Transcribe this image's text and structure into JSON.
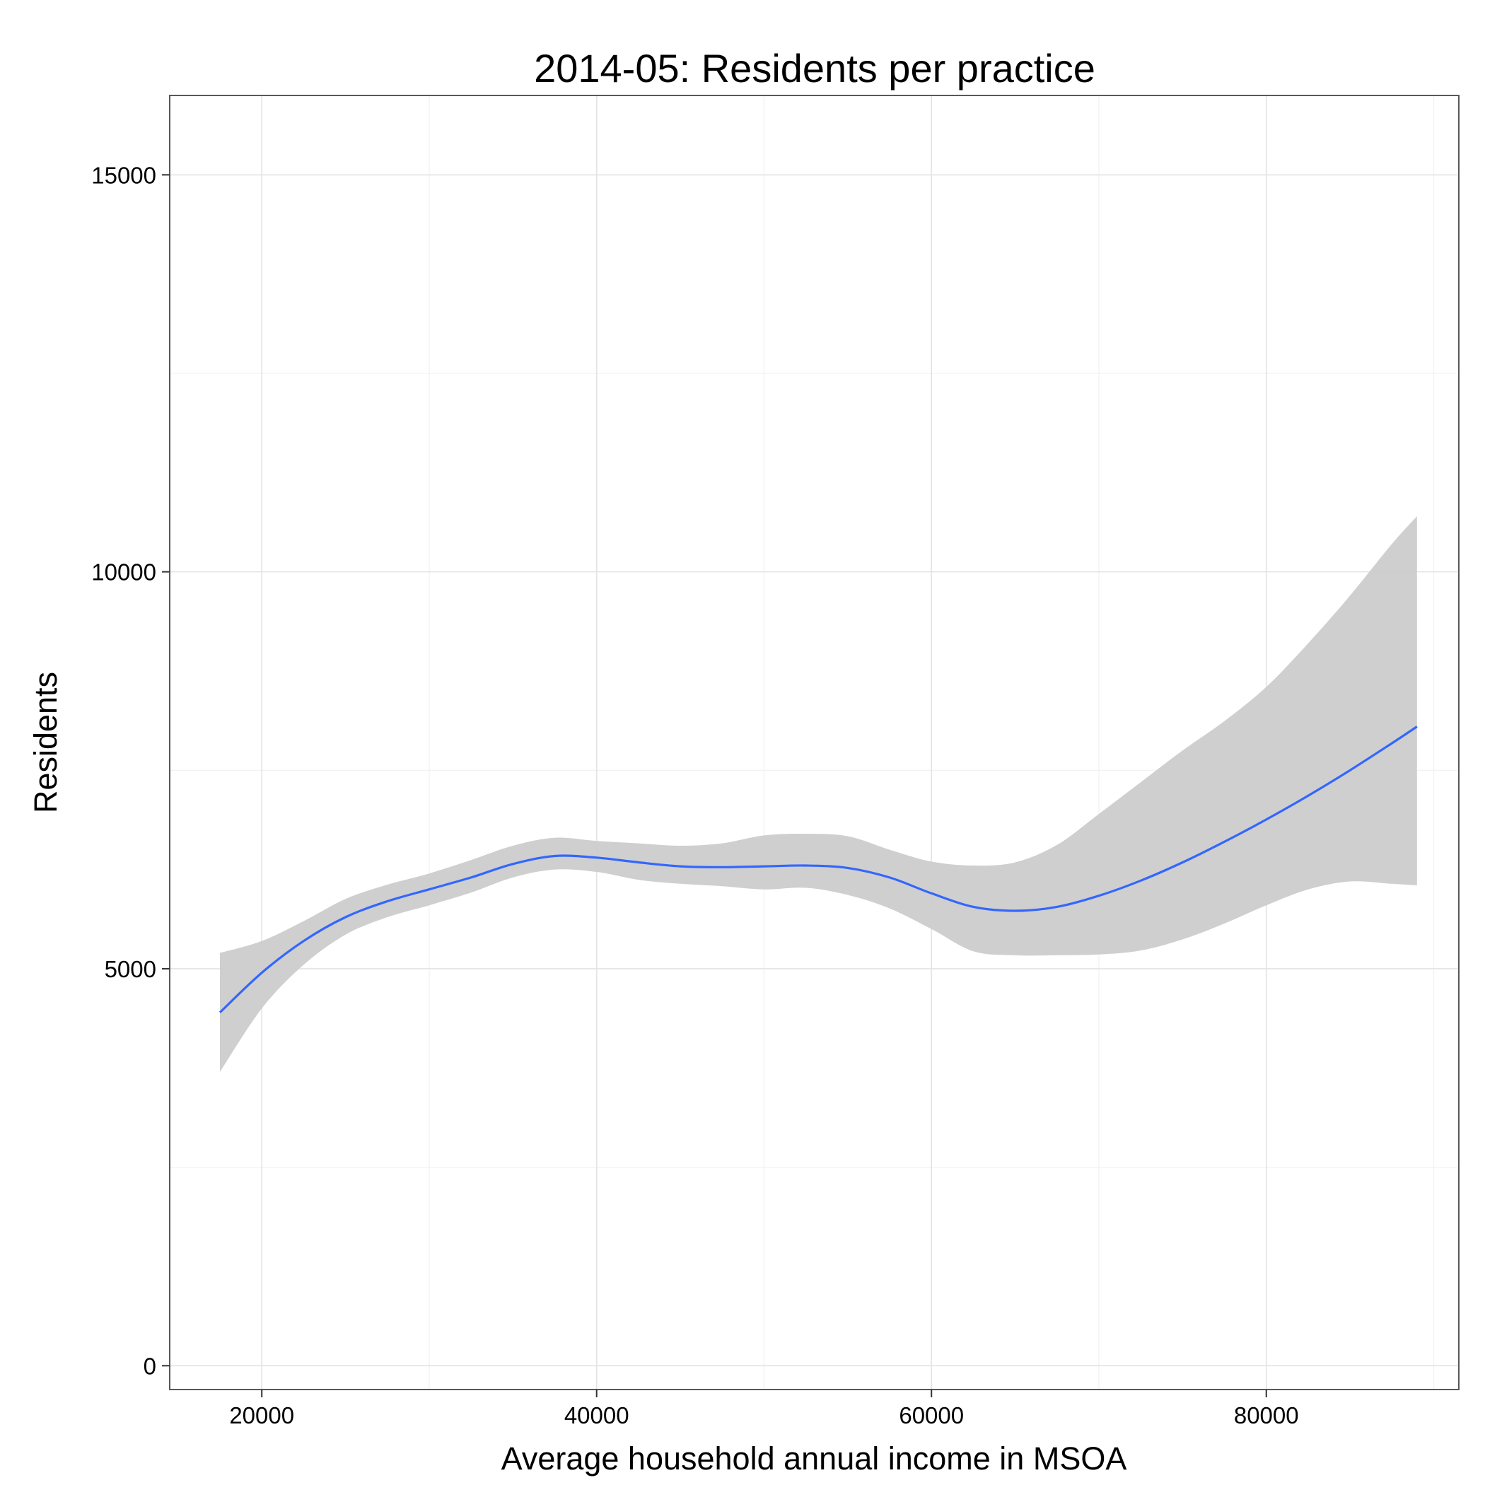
{
  "chart_data": {
    "type": "line",
    "title": "2014-05: Residents per practice",
    "xlabel": "Average household annual income in MSOA",
    "ylabel": "Residents",
    "xlim": [
      14500,
      91500
    ],
    "ylim": [
      -300,
      16000
    ],
    "x_ticks": [
      20000,
      40000,
      60000,
      80000
    ],
    "x_tick_labels": [
      "20000",
      "40000",
      "60000",
      "80000"
    ],
    "x_minor_ticks": [
      30000,
      50000,
      70000,
      90000
    ],
    "y_ticks": [
      0,
      5000,
      10000,
      15000
    ],
    "y_tick_labels": [
      "0",
      "5000",
      "10000",
      "15000"
    ],
    "y_minor_ticks": [
      2500,
      7500,
      12500
    ],
    "grid": true,
    "series": [
      {
        "type": "smooth",
        "color": "#3366ff",
        "band_color": "#cccccc",
        "x": [
          17500,
          20000,
          22500,
          25000,
          27500,
          30000,
          32500,
          35000,
          37500,
          40000,
          42500,
          45000,
          47500,
          50000,
          52500,
          55000,
          57500,
          60000,
          62500,
          65000,
          67500,
          70000,
          72500,
          75000,
          77500,
          80000,
          82500,
          85000,
          87500,
          89000
        ],
        "y": [
          4450,
          4950,
          5350,
          5650,
          5850,
          6000,
          6150,
          6320,
          6420,
          6400,
          6340,
          6290,
          6280,
          6290,
          6300,
          6270,
          6150,
          5950,
          5780,
          5730,
          5780,
          5920,
          6110,
          6340,
          6600,
          6880,
          7180,
          7500,
          7840,
          8050
        ],
        "ymin": [
          3700,
          4500,
          5050,
          5430,
          5650,
          5800,
          5960,
          6150,
          6250,
          6220,
          6120,
          6070,
          6040,
          6000,
          6020,
          5930,
          5760,
          5500,
          5220,
          5170,
          5170,
          5180,
          5230,
          5370,
          5570,
          5800,
          6000,
          6100,
          6070,
          6050
        ],
        "ymax": [
          5200,
          5350,
          5600,
          5880,
          6060,
          6200,
          6370,
          6550,
          6650,
          6610,
          6580,
          6550,
          6580,
          6680,
          6700,
          6670,
          6500,
          6350,
          6300,
          6340,
          6560,
          6950,
          7350,
          7750,
          8120,
          8550,
          9100,
          9700,
          10350,
          10700
        ]
      }
    ]
  }
}
